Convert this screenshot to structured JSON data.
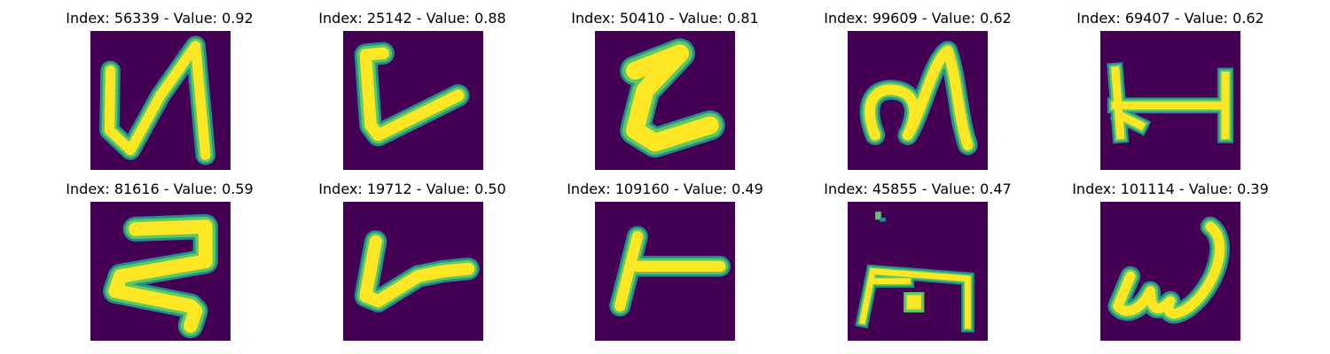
{
  "figure": {
    "colormap": {
      "background": "#440154",
      "edge": "#21918c",
      "mid": "#5ec962",
      "stroke": "#fde725"
    },
    "panels": [
      {
        "title": "Index: 56339 - Value: 0.92",
        "index": 56339,
        "value": 0.92,
        "glyph": "N-shape"
      },
      {
        "title": "Index: 25142 - Value: 0.88",
        "index": 25142,
        "value": 0.88,
        "glyph": "L-shape"
      },
      {
        "title": "Index: 50410 - Value: 0.81",
        "index": 50410,
        "value": 0.81,
        "glyph": "Z-like-shape"
      },
      {
        "title": "Index: 99609 - Value: 0.62",
        "index": 99609,
        "value": 0.62,
        "glyph": "script-N-shape"
      },
      {
        "title": "Index: 69407 - Value: 0.62",
        "index": 69407,
        "value": 0.62,
        "glyph": "H-bar-shape"
      },
      {
        "title": "Index: 81616 - Value: 0.59",
        "index": 81616,
        "value": 0.59,
        "glyph": "reversed-Z-shape"
      },
      {
        "title": "Index: 19712 - Value: 0.50",
        "index": 19712,
        "value": 0.5,
        "glyph": "check-shape"
      },
      {
        "title": "Index: 109160 - Value: 0.49",
        "index": 109160,
        "value": 0.49,
        "glyph": "T-like-shape"
      },
      {
        "title": "Index: 45855 - Value: 0.47",
        "index": 45855,
        "value": 0.47,
        "glyph": "box-with-dot-shape"
      },
      {
        "title": "Index: 101114 - Value: 0.39",
        "index": 101114,
        "value": 0.39,
        "glyph": "omega-shape"
      }
    ]
  }
}
